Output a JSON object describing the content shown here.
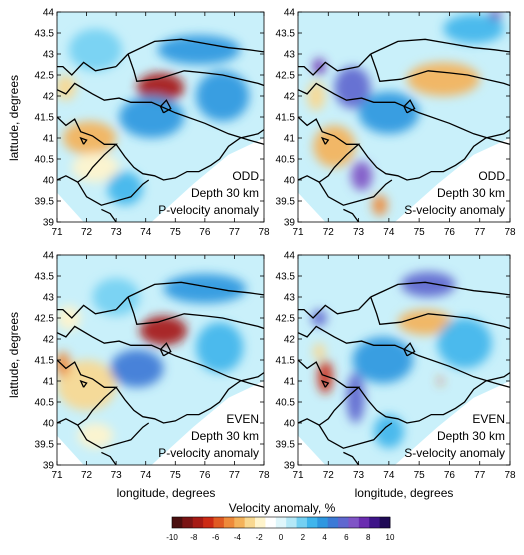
{
  "chart_data": {
    "type": "heatmap",
    "axes": {
      "xlabel": "longitude, degrees",
      "ylabel": "lattude, degrees",
      "xlim": [
        71,
        78
      ],
      "ylim": [
        39,
        44
      ],
      "xticks": [
        71,
        72,
        73,
        74,
        75,
        76,
        77,
        78
      ],
      "yticks": [
        39,
        39.5,
        40,
        40.5,
        41,
        41.5,
        42,
        42.5,
        43,
        43.5,
        44
      ]
    },
    "colorbar": {
      "label": "Velocity anomaly, %",
      "ticks": [
        -10,
        -8,
        -6,
        -4,
        -2,
        0,
        2,
        4,
        6,
        8,
        10
      ],
      "colors": [
        "#4a0f0f",
        "#7a1414",
        "#a61a14",
        "#cc2a14",
        "#e05a22",
        "#ee8a3a",
        "#f4b25a",
        "#f9d890",
        "#fff4cc",
        "#ffffff",
        "#dff6fb",
        "#b4e8f7",
        "#74d0f2",
        "#3fb5ec",
        "#2e97e0",
        "#3c7ad6",
        "#5f67cf",
        "#7f54c6",
        "#6a2cb0",
        "#3e1488",
        "#1f0a55"
      ]
    },
    "panels": [
      {
        "title_lines": [
          "ODD",
          "Depth 30 km",
          "P-velocity anomaly"
        ],
        "anomalies": [
          {
            "lon": 74.5,
            "lat": 42.2,
            "value": -8,
            "rx": 0.8,
            "ry": 0.35
          },
          {
            "lon": 72.1,
            "lat": 41.0,
            "value": -4,
            "rx": 0.9,
            "ry": 0.4
          },
          {
            "lon": 72.3,
            "lat": 40.3,
            "value": -2,
            "rx": 0.8,
            "ry": 0.35
          },
          {
            "lon": 71.3,
            "lat": 42.2,
            "value": -3,
            "rx": 0.35,
            "ry": 0.3
          },
          {
            "lon": 75.8,
            "lat": 43.1,
            "value": 4,
            "rx": 1.4,
            "ry": 0.35
          },
          {
            "lon": 74.2,
            "lat": 41.5,
            "value": 4,
            "rx": 1.1,
            "ry": 0.5
          },
          {
            "lon": 76.6,
            "lat": 42.0,
            "value": 4,
            "rx": 0.9,
            "ry": 0.6
          },
          {
            "lon": 72.3,
            "lat": 43.1,
            "value": 2,
            "rx": 0.9,
            "ry": 0.5
          },
          {
            "lon": 73.3,
            "lat": 39.8,
            "value": 3,
            "rx": 0.6,
            "ry": 0.4
          }
        ]
      },
      {
        "title_lines": [
          "ODD",
          "Depth 30 km",
          "S-velocity anomaly"
        ],
        "anomalies": [
          {
            "lon": 75.8,
            "lat": 42.4,
            "value": -4,
            "rx": 1.2,
            "ry": 0.4
          },
          {
            "lon": 72.2,
            "lat": 40.8,
            "value": -4,
            "rx": 0.7,
            "ry": 0.5
          },
          {
            "lon": 71.6,
            "lat": 42.0,
            "value": -3,
            "rx": 0.3,
            "ry": 0.35
          },
          {
            "lon": 73.7,
            "lat": 39.4,
            "value": -5,
            "rx": 0.25,
            "ry": 0.25
          },
          {
            "lon": 72.8,
            "lat": 42.2,
            "value": 6,
            "rx": 0.6,
            "ry": 0.5
          },
          {
            "lon": 73.1,
            "lat": 40.1,
            "value": 7,
            "rx": 0.35,
            "ry": 0.35
          },
          {
            "lon": 71.7,
            "lat": 42.7,
            "value": 8,
            "rx": 0.2,
            "ry": 0.2
          },
          {
            "lon": 77.5,
            "lat": 43.9,
            "value": 8,
            "rx": 0.2,
            "ry": 0.15
          },
          {
            "lon": 74.0,
            "lat": 41.6,
            "value": 4,
            "rx": 1.0,
            "ry": 0.5
          },
          {
            "lon": 76.8,
            "lat": 43.6,
            "value": 3,
            "rx": 1.0,
            "ry": 0.35
          }
        ]
      },
      {
        "title_lines": [
          "EVEN",
          "Depth 30 km",
          "P-velocity anomaly"
        ],
        "anomalies": [
          {
            "lon": 74.6,
            "lat": 42.2,
            "value": -8,
            "rx": 0.8,
            "ry": 0.35
          },
          {
            "lon": 72.0,
            "lat": 40.9,
            "value": -3,
            "rx": 1.0,
            "ry": 0.6
          },
          {
            "lon": 71.2,
            "lat": 41.4,
            "value": -5,
            "rx": 0.25,
            "ry": 0.3
          },
          {
            "lon": 71.4,
            "lat": 42.5,
            "value": -2,
            "rx": 0.4,
            "ry": 0.3
          },
          {
            "lon": 72.3,
            "lat": 39.7,
            "value": -2,
            "rx": 0.6,
            "ry": 0.3
          },
          {
            "lon": 76.0,
            "lat": 43.2,
            "value": 4,
            "rx": 1.4,
            "ry": 0.35
          },
          {
            "lon": 73.7,
            "lat": 41.3,
            "value": 5,
            "rx": 0.9,
            "ry": 0.45
          },
          {
            "lon": 76.5,
            "lat": 41.8,
            "value": 3,
            "rx": 0.8,
            "ry": 0.6
          },
          {
            "lon": 73.0,
            "lat": 43.0,
            "value": 2,
            "rx": 0.8,
            "ry": 0.45
          }
        ]
      },
      {
        "title_lines": [
          "EVEN",
          "Depth 30 km",
          "S-velocity anomaly"
        ],
        "anomalies": [
          {
            "lon": 75.2,
            "lat": 42.4,
            "value": -4,
            "rx": 0.9,
            "ry": 0.3
          },
          {
            "lon": 71.9,
            "lat": 41.1,
            "value": -7,
            "rx": 0.25,
            "ry": 0.4
          },
          {
            "lon": 71.7,
            "lat": 41.7,
            "value": -3,
            "rx": 0.2,
            "ry": 0.2
          },
          {
            "lon": 75.7,
            "lat": 41.0,
            "value": -6,
            "rx": 0.06,
            "ry": 0.12
          },
          {
            "lon": 75.3,
            "lat": 43.3,
            "value": 6,
            "rx": 0.9,
            "ry": 0.3
          },
          {
            "lon": 72.9,
            "lat": 40.6,
            "value": 6,
            "rx": 0.3,
            "ry": 0.6
          },
          {
            "lon": 71.7,
            "lat": 42.5,
            "value": 6,
            "rx": 0.25,
            "ry": 0.2
          },
          {
            "lon": 73.8,
            "lat": 41.5,
            "value": 4,
            "rx": 1.0,
            "ry": 0.55
          },
          {
            "lon": 76.5,
            "lat": 41.9,
            "value": 3,
            "rx": 0.9,
            "ry": 0.6
          },
          {
            "lon": 74.0,
            "lat": 39.8,
            "value": 3,
            "rx": 0.5,
            "ry": 0.4
          }
        ]
      }
    ],
    "boundaries": [
      [
        [
          73.4,
          43.0
        ],
        [
          73.6,
          42.6
        ],
        [
          73.7,
          42.35
        ],
        [
          74.4,
          42.4
        ],
        [
          75.3,
          42.6
        ],
        [
          76.0,
          42.55
        ],
        [
          76.6,
          42.5
        ],
        [
          77.2,
          42.4
        ],
        [
          77.8,
          42.3
        ],
        [
          78.0,
          42.25
        ]
      ],
      [
        [
          73.4,
          43.0
        ],
        [
          74.3,
          43.3
        ],
        [
          75.2,
          43.35
        ],
        [
          76.0,
          43.25
        ],
        [
          76.8,
          43.15
        ],
        [
          77.5,
          43.1
        ],
        [
          78.0,
          43.05
        ]
      ],
      [
        [
          73.0,
          42.7
        ],
        [
          73.4,
          43.0
        ]
      ],
      [
        [
          73.0,
          42.7
        ],
        [
          72.3,
          42.6
        ],
        [
          71.9,
          42.8
        ],
        [
          71.5,
          42.5
        ],
        [
          71.2,
          42.7
        ],
        [
          71.0,
          42.7
        ]
      ],
      [
        [
          71.0,
          42.15
        ],
        [
          71.3,
          42.05
        ],
        [
          71.6,
          42.3
        ],
        [
          72.2,
          42.05
        ],
        [
          72.6,
          41.9
        ],
        [
          73.1,
          41.95
        ],
        [
          73.5,
          41.85
        ],
        [
          74.2,
          41.85
        ],
        [
          75.0,
          41.6
        ],
        [
          76.0,
          41.35
        ],
        [
          76.8,
          41.1
        ],
        [
          77.5,
          40.95
        ],
        [
          78.0,
          40.85
        ]
      ],
      [
        [
          71.0,
          41.5
        ],
        [
          71.3,
          41.3
        ],
        [
          71.6,
          41.45
        ],
        [
          71.8,
          41.15
        ],
        [
          72.2,
          41.05
        ],
        [
          72.6,
          40.85
        ],
        [
          73.0,
          40.85
        ],
        [
          72.6,
          40.6
        ],
        [
          72.2,
          40.3
        ],
        [
          72.0,
          40.1
        ],
        [
          71.7,
          39.95
        ],
        [
          71.3,
          40.1
        ],
        [
          71.0,
          40.0
        ]
      ],
      [
        [
          73.0,
          40.85
        ],
        [
          73.3,
          40.55
        ],
        [
          73.6,
          40.3
        ],
        [
          73.9,
          40.15
        ],
        [
          74.3,
          40.1
        ],
        [
          74.6,
          40.0
        ],
        [
          75.0,
          40.05
        ],
        [
          75.4,
          40.2
        ],
        [
          75.8,
          40.2
        ],
        [
          76.2,
          40.35
        ],
        [
          76.5,
          40.5
        ],
        [
          76.8,
          40.8
        ],
        [
          77.2,
          41.0
        ],
        [
          77.8,
          41.1
        ],
        [
          78.0,
          41.2
        ]
      ],
      [
        [
          71.7,
          39.95
        ],
        [
          72.0,
          39.6
        ],
        [
          72.5,
          39.4
        ],
        [
          73.0,
          39.5
        ],
        [
          73.5,
          39.6
        ],
        [
          73.9,
          39.9
        ],
        [
          74.1,
          40.0
        ]
      ],
      [
        [
          73.0,
          39.0
        ],
        [
          72.8,
          39.2
        ],
        [
          72.5,
          39.3
        ]
      ],
      [
        [
          74.6,
          41.6
        ],
        [
          74.85,
          41.7
        ],
        [
          74.7,
          41.9
        ],
        [
          74.5,
          41.75
        ],
        [
          74.6,
          41.6
        ]
      ],
      [
        [
          71.9,
          40.85
        ],
        [
          72.0,
          40.95
        ],
        [
          71.8,
          41.0
        ],
        [
          71.9,
          40.85
        ]
      ]
    ]
  }
}
